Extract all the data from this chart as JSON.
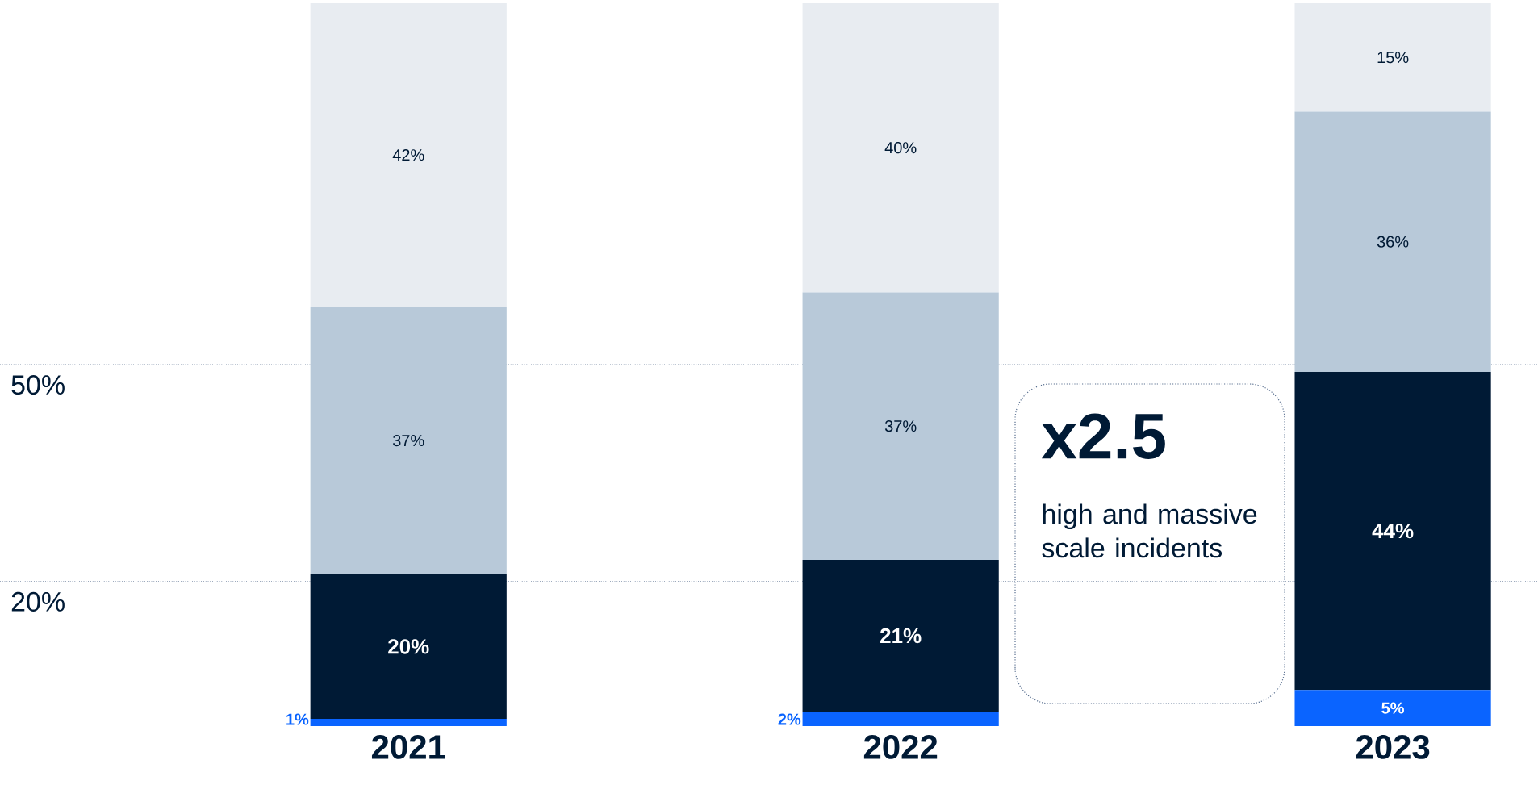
{
  "chart_data": {
    "type": "bar",
    "stacked": true,
    "categories": [
      "2021",
      "2022",
      "2023"
    ],
    "ylim": [
      0,
      100
    ],
    "yticks": [
      {
        "value": 20,
        "label": "20%"
      },
      {
        "value": 50,
        "label": "50%"
      }
    ],
    "grid": "y",
    "series": [
      {
        "color": "#0a64ff",
        "values": [
          1,
          2,
          5
        ],
        "value_labels": [
          "1%",
          "2%",
          "5%"
        ]
      },
      {
        "color": "#001a35",
        "values": [
          20,
          21,
          44
        ],
        "value_labels": [
          "20%",
          "21%",
          "44%"
        ]
      },
      {
        "color": "#b8c9d9",
        "values": [
          37,
          37,
          36
        ],
        "value_labels": [
          "37%",
          "37%",
          "36%"
        ]
      },
      {
        "color": "#e8ecf1",
        "values": [
          42,
          40,
          15
        ],
        "value_labels": [
          "42%",
          "40%",
          "15%"
        ]
      }
    ],
    "annotations": [
      "x2.5",
      "high and massive scale incidents"
    ]
  }
}
